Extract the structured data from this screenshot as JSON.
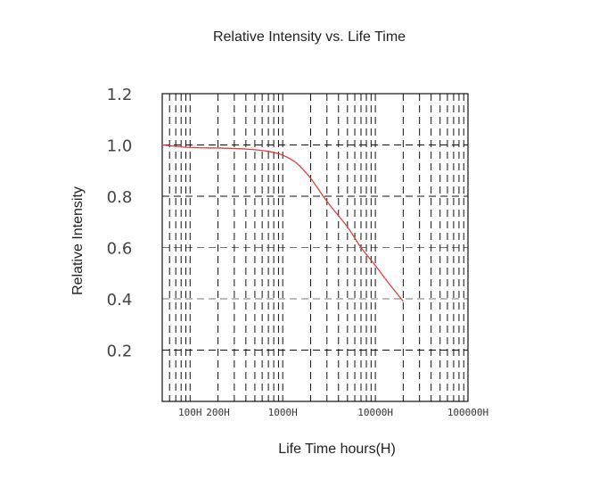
{
  "chart_data": {
    "type": "line",
    "title": "Relative Intensity vs. Life Time",
    "xlabel": "Life Time hours(H)",
    "ylabel": "Relative Intensity",
    "x_scale": "log",
    "xlim": [
      50,
      100000
    ],
    "ylim": [
      0,
      1.2
    ],
    "grid": true,
    "y_ticks": [
      "1.2",
      "1.0",
      "0.8",
      "0.6",
      "0.4",
      "0.2"
    ],
    "x_tick_labels": [
      {
        "value": 100,
        "label": "100H"
      },
      {
        "value": 200,
        "label": "200H"
      },
      {
        "value": 1000,
        "label": "1000H"
      },
      {
        "value": 10000,
        "label": "10000H"
      },
      {
        "value": 100000,
        "label": "100000H"
      }
    ],
    "series": [
      {
        "color": "#e0403a",
        "points": [
          {
            "x": 50,
            "y": 1.0
          },
          {
            "x": 100,
            "y": 0.99
          },
          {
            "x": 200,
            "y": 0.988
          },
          {
            "x": 400,
            "y": 0.984
          },
          {
            "x": 700,
            "y": 0.975
          },
          {
            "x": 1000,
            "y": 0.96
          },
          {
            "x": 1400,
            "y": 0.93
          },
          {
            "x": 2000,
            "y": 0.87
          },
          {
            "x": 3000,
            "y": 0.78
          },
          {
            "x": 5000,
            "y": 0.68
          },
          {
            "x": 7000,
            "y": 0.6
          },
          {
            "x": 10000,
            "y": 0.53
          },
          {
            "x": 14000,
            "y": 0.46
          },
          {
            "x": 20000,
            "y": 0.39
          }
        ]
      }
    ]
  }
}
